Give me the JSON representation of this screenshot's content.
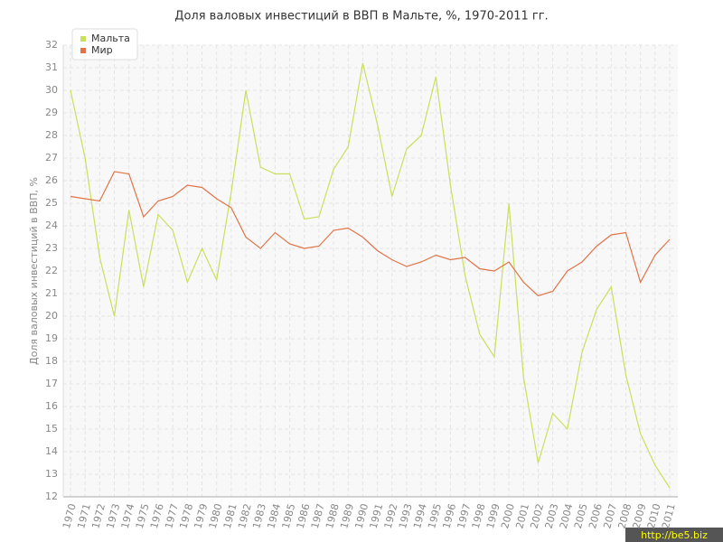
{
  "chart_data": {
    "type": "line",
    "title": "Доля валовых инвестиций в ВВП в Мальте, %, 1970-2011 гг.",
    "y_label": "Доля валовых инвестиций в ВВП, %",
    "categories": [
      "1970",
      "1971",
      "1972",
      "1973",
      "1974",
      "1975",
      "1976",
      "1977",
      "1978",
      "1979",
      "1980",
      "1981",
      "1982",
      "1983",
      "1984",
      "1985",
      "1986",
      "1987",
      "1988",
      "1989",
      "1990",
      "1991",
      "1992",
      "1993",
      "1994",
      "1995",
      "1996",
      "1997",
      "1998",
      "1999",
      "2000",
      "2001",
      "2002",
      "2003",
      "2004",
      "2005",
      "2006",
      "2007",
      "2008",
      "2009",
      "2010",
      "2011"
    ],
    "series": [
      {
        "name": "Мальта",
        "color": "#c8e05c",
        "values": [
          30.0,
          27.0,
          22.6,
          20.0,
          24.7,
          21.3,
          24.5,
          23.8,
          21.5,
          23.0,
          21.6,
          25.5,
          30.0,
          26.6,
          26.3,
          26.3,
          24.3,
          24.4,
          26.5,
          27.5,
          31.2,
          28.5,
          25.3,
          27.4,
          28.0,
          30.6,
          25.8,
          21.8,
          19.2,
          18.2,
          25.0,
          17.3,
          13.5,
          15.7,
          15.0,
          18.4,
          20.3,
          21.3,
          17.4,
          14.8,
          13.4,
          12.4
        ]
      },
      {
        "name": "Мир",
        "color": "#e07448",
        "values": [
          25.3,
          25.2,
          25.1,
          26.4,
          26.3,
          24.4,
          25.1,
          25.3,
          25.8,
          25.7,
          25.2,
          24.8,
          23.5,
          23.0,
          23.7,
          23.2,
          23.0,
          23.1,
          23.8,
          23.9,
          23.5,
          22.9,
          22.5,
          22.2,
          22.4,
          22.7,
          22.5,
          22.6,
          22.1,
          22.0,
          22.4,
          21.5,
          20.9,
          21.1,
          22.0,
          22.4,
          23.1,
          23.6,
          23.7,
          21.5,
          22.7,
          23.4
        ]
      }
    ],
    "ylim": [
      12,
      32
    ],
    "yticks": [
      12,
      13,
      14,
      15,
      16,
      17,
      18,
      19,
      20,
      21,
      22,
      23,
      24,
      25,
      26,
      27,
      28,
      29,
      30,
      31,
      32
    ],
    "grid": true,
    "legend": "top-left",
    "watermark": "http://be5.biz"
  }
}
